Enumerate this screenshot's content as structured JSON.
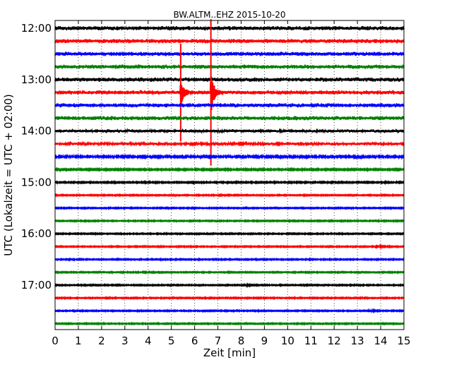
{
  "chart_data": {
    "type": "line",
    "title": "BW.ALTM..EHZ 2015-10-20",
    "xlabel": "Zeit  [min]",
    "ylabel": "UTC (Lokalzeit = UTC + 02:00)",
    "xlim": [
      0,
      15
    ],
    "x_ticks": [
      "0",
      "1",
      "2",
      "3",
      "4",
      "5",
      "6",
      "7",
      "8",
      "9",
      "10",
      "11",
      "12",
      "13",
      "14",
      "15"
    ],
    "y_ticks": [
      "12:00",
      "13:00",
      "14:00",
      "15:00",
      "16:00",
      "17:00"
    ],
    "grid": "vertical dotted lines at each minute",
    "trace_colors": [
      "#000000",
      "#ff0000",
      "#0000ff",
      "#008000"
    ],
    "traces": [
      {
        "start_utc": "12:00",
        "color": "#000000",
        "noise_amplitude": 1.0
      },
      {
        "start_utc": "12:15",
        "color": "#ff0000",
        "noise_amplitude": 1.0
      },
      {
        "start_utc": "12:30",
        "color": "#0000ff",
        "noise_amplitude": 1.0
      },
      {
        "start_utc": "12:45",
        "color": "#008000",
        "noise_amplitude": 1.0
      },
      {
        "start_utc": "13:00",
        "color": "#000000",
        "noise_amplitude": 1.0
      },
      {
        "start_utc": "13:15",
        "color": "#ff0000",
        "noise_amplitude": 1.0
      },
      {
        "start_utc": "13:30",
        "color": "#0000ff",
        "noise_amplitude": 1.0
      },
      {
        "start_utc": "13:45",
        "color": "#008000",
        "noise_amplitude": 1.0
      },
      {
        "start_utc": "14:00",
        "color": "#000000",
        "noise_amplitude": 0.8
      },
      {
        "start_utc": "14:15",
        "color": "#ff0000",
        "noise_amplitude": 0.7
      },
      {
        "start_utc": "14:30",
        "color": "#0000ff",
        "noise_amplitude": 0.5
      },
      {
        "start_utc": "14:45",
        "color": "#008000",
        "noise_amplitude": 0.4
      },
      {
        "start_utc": "15:00",
        "color": "#000000",
        "noise_amplitude": 0.35
      },
      {
        "start_utc": "15:15",
        "color": "#ff0000",
        "noise_amplitude": 0.3
      },
      {
        "start_utc": "15:30",
        "color": "#0000ff",
        "noise_amplitude": 0.3
      },
      {
        "start_utc": "15:45",
        "color": "#008000",
        "noise_amplitude": 0.3
      },
      {
        "start_utc": "16:00",
        "color": "#000000",
        "noise_amplitude": 0.3
      },
      {
        "start_utc": "16:15",
        "color": "#ff0000",
        "noise_amplitude": 0.3
      },
      {
        "start_utc": "16:30",
        "color": "#0000ff",
        "noise_amplitude": 0.3
      },
      {
        "start_utc": "16:45",
        "color": "#008000",
        "noise_amplitude": 0.3
      },
      {
        "start_utc": "17:00",
        "color": "#000000",
        "noise_amplitude": 0.3
      },
      {
        "start_utc": "17:15",
        "color": "#ff0000",
        "noise_amplitude": 0.3
      },
      {
        "start_utc": "17:30",
        "color": "#0000ff",
        "noise_amplitude": 0.3
      },
      {
        "start_utc": "17:45",
        "color": "#008000",
        "noise_amplitude": 0.3
      }
    ],
    "events": [
      {
        "start_utc": "13:15",
        "minute": 5.4,
        "peak_amplitude": 6.5,
        "upward_extent": 4.0,
        "downward_extent": 4.0
      },
      {
        "start_utc": "13:15",
        "minute": 6.7,
        "peak_amplitude": 10.0,
        "upward_extent": 6.0,
        "downward_extent": 6.0
      },
      {
        "start_utc": "16:15",
        "minute": 13.8,
        "peak_amplitude": 1.0,
        "upward_extent": 1.0,
        "downward_extent": 1.0
      },
      {
        "start_utc": "17:00",
        "minute": 8.1,
        "peak_amplitude": 0.8,
        "upward_extent": 1.0,
        "downward_extent": 1.0
      },
      {
        "start_utc": "17:30",
        "minute": 13.5,
        "peak_amplitude": 0.6,
        "upward_extent": 1.0,
        "downward_extent": 1.0
      },
      {
        "start_utc": "14:30",
        "minute": 1.5,
        "peak_amplitude": 0.6,
        "upward_extent": 1.0,
        "downward_extent": 1.0
      }
    ]
  }
}
